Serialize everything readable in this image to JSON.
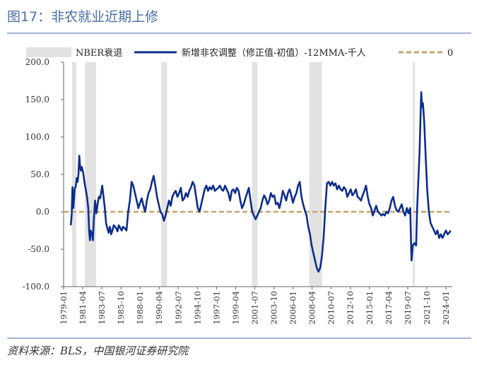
{
  "figure": {
    "title": "图17：非农就业近期上修",
    "source": "资料来源：BLS，中国银河证券研究院",
    "colors": {
      "title": "#4a6ea8",
      "series": "#0d2d8c",
      "zero": "#c8a26b",
      "recession": "#e2e2e2",
      "rule": "#4a6ea8"
    }
  },
  "chart_data": {
    "type": "line",
    "legend": [
      {
        "label": "NBER衰退",
        "kind": "band"
      },
      {
        "label": "新增非农调整（修正值-初值）-12MMA-千人",
        "kind": "line"
      },
      {
        "label": "0",
        "kind": "dashed"
      }
    ],
    "legend_position": "top",
    "grid": false,
    "ylim": [
      -100,
      200
    ],
    "y_ticks": [
      "200.0",
      "150.0",
      "100.0",
      "50.0",
      "0.0",
      "-50.0",
      "-100.0"
    ],
    "y_tick_values": [
      200,
      150,
      100,
      50,
      0,
      -50,
      -100
    ],
    "x_ticks": [
      "1979-01",
      "1981-04",
      "1983-07",
      "1985-10",
      "1988-01",
      "1990-04",
      "1992-07",
      "1994-10",
      "1997-01",
      "1999-04",
      "2001-07",
      "2003-10",
      "2006-01",
      "2008-04",
      "2010-07",
      "2012-10",
      "2015-01",
      "2017-04",
      "2019-07",
      "2021-10",
      "2024-01"
    ],
    "xlim": [
      1979.0,
      2024.75
    ],
    "recessions": [
      [
        1980.0,
        1980.5
      ],
      [
        1981.5,
        1982.83
      ],
      [
        1990.5,
        1991.17
      ],
      [
        2001.17,
        2001.83
      ],
      [
        2007.92,
        2009.42
      ],
      [
        2020.08,
        2020.33
      ]
    ],
    "series": [
      {
        "name": "新增非农调整（修正值-初值）-12MMA-千人",
        "points": [
          [
            1979.85,
            -18
          ],
          [
            1979.95,
            -5
          ],
          [
            1980.05,
            33
          ],
          [
            1980.15,
            5
          ],
          [
            1980.3,
            30
          ],
          [
            1980.45,
            35
          ],
          [
            1980.55,
            45
          ],
          [
            1980.65,
            40
          ],
          [
            1980.75,
            50
          ],
          [
            1980.85,
            75
          ],
          [
            1980.95,
            60
          ],
          [
            1981.05,
            55
          ],
          [
            1981.15,
            60
          ],
          [
            1981.3,
            52
          ],
          [
            1981.45,
            40
          ],
          [
            1981.6,
            30
          ],
          [
            1981.75,
            20
          ],
          [
            1981.9,
            5
          ],
          [
            1982.0,
            -25
          ],
          [
            1982.1,
            -38
          ],
          [
            1982.2,
            -25
          ],
          [
            1982.35,
            -30
          ],
          [
            1982.45,
            -38
          ],
          [
            1982.55,
            -12
          ],
          [
            1982.7,
            15
          ],
          [
            1982.85,
            -2
          ],
          [
            1983.0,
            10
          ],
          [
            1983.15,
            20
          ],
          [
            1983.3,
            18
          ],
          [
            1983.45,
            28
          ],
          [
            1983.55,
            35
          ],
          [
            1983.7,
            20
          ],
          [
            1983.85,
            5
          ],
          [
            1984.0,
            -15
          ],
          [
            1984.15,
            -22
          ],
          [
            1984.3,
            -28
          ],
          [
            1984.45,
            -20
          ],
          [
            1984.6,
            -30
          ],
          [
            1984.75,
            -25
          ],
          [
            1984.9,
            -18
          ],
          [
            1985.05,
            -20
          ],
          [
            1985.2,
            -22
          ],
          [
            1985.35,
            -26
          ],
          [
            1985.5,
            -18
          ],
          [
            1985.7,
            -22
          ],
          [
            1985.85,
            -25
          ],
          [
            1986.0,
            -20
          ],
          [
            1986.2,
            -22
          ],
          [
            1986.4,
            -25
          ],
          [
            1986.6,
            0
          ],
          [
            1986.8,
            15
          ],
          [
            1987.0,
            40
          ],
          [
            1987.2,
            35
          ],
          [
            1987.4,
            25
          ],
          [
            1987.6,
            15
          ],
          [
            1987.8,
            5
          ],
          [
            1988.0,
            12
          ],
          [
            1988.2,
            18
          ],
          [
            1988.4,
            8
          ],
          [
            1988.6,
            0
          ],
          [
            1988.8,
            15
          ],
          [
            1989.0,
            25
          ],
          [
            1989.2,
            30
          ],
          [
            1989.4,
            40
          ],
          [
            1989.6,
            48
          ],
          [
            1989.8,
            35
          ],
          [
            1990.0,
            20
          ],
          [
            1990.2,
            10
          ],
          [
            1990.4,
            0
          ],
          [
            1990.6,
            -3
          ],
          [
            1990.8,
            -12
          ],
          [
            1991.0,
            -5
          ],
          [
            1991.2,
            5
          ],
          [
            1991.4,
            15
          ],
          [
            1991.6,
            8
          ],
          [
            1991.8,
            20
          ],
          [
            1992.0,
            25
          ],
          [
            1992.2,
            28
          ],
          [
            1992.4,
            20
          ],
          [
            1992.6,
            25
          ],
          [
            1992.8,
            32
          ],
          [
            1993.0,
            15
          ],
          [
            1993.2,
            18
          ],
          [
            1993.4,
            25
          ],
          [
            1993.6,
            20
          ],
          [
            1993.8,
            28
          ],
          [
            1994.0,
            33
          ],
          [
            1994.2,
            40
          ],
          [
            1994.4,
            35
          ],
          [
            1994.6,
            20
          ],
          [
            1994.8,
            5
          ],
          [
            1995.0,
            0
          ],
          [
            1995.2,
            10
          ],
          [
            1995.4,
            20
          ],
          [
            1995.6,
            30
          ],
          [
            1995.8,
            35
          ],
          [
            1996.0,
            28
          ],
          [
            1996.2,
            33
          ],
          [
            1996.4,
            30
          ],
          [
            1996.6,
            35
          ],
          [
            1996.8,
            28
          ],
          [
            1997.0,
            30
          ],
          [
            1997.2,
            32
          ],
          [
            1997.4,
            35
          ],
          [
            1997.6,
            30
          ],
          [
            1997.8,
            28
          ],
          [
            1998.0,
            35
          ],
          [
            1998.2,
            30
          ],
          [
            1998.4,
            25
          ],
          [
            1998.6,
            15
          ],
          [
            1998.8,
            28
          ],
          [
            1999.0,
            30
          ],
          [
            1999.2,
            25
          ],
          [
            1999.4,
            32
          ],
          [
            1999.6,
            28
          ],
          [
            1999.8,
            15
          ],
          [
            2000.0,
            5
          ],
          [
            2000.2,
            10
          ],
          [
            2000.4,
            18
          ],
          [
            2000.6,
            25
          ],
          [
            2000.8,
            32
          ],
          [
            2001.0,
            15
          ],
          [
            2001.2,
            0
          ],
          [
            2001.4,
            -5
          ],
          [
            2001.6,
            -10
          ],
          [
            2001.8,
            -5
          ],
          [
            2002.0,
            0
          ],
          [
            2002.2,
            5
          ],
          [
            2002.4,
            15
          ],
          [
            2002.6,
            22
          ],
          [
            2002.8,
            18
          ],
          [
            2003.0,
            10
          ],
          [
            2003.2,
            15
          ],
          [
            2003.4,
            25
          ],
          [
            2003.6,
            20
          ],
          [
            2003.8,
            22
          ],
          [
            2004.0,
            10
          ],
          [
            2004.2,
            12
          ],
          [
            2004.4,
            5
          ],
          [
            2004.6,
            15
          ],
          [
            2004.8,
            28
          ],
          [
            2005.0,
            22
          ],
          [
            2005.2,
            15
          ],
          [
            2005.4,
            25
          ],
          [
            2005.6,
            30
          ],
          [
            2005.8,
            22
          ],
          [
            2006.0,
            12
          ],
          [
            2006.2,
            20
          ],
          [
            2006.4,
            25
          ],
          [
            2006.6,
            35
          ],
          [
            2006.8,
            40
          ],
          [
            2007.0,
            20
          ],
          [
            2007.2,
            10
          ],
          [
            2007.4,
            2
          ],
          [
            2007.6,
            -5
          ],
          [
            2007.8,
            -20
          ],
          [
            2008.0,
            -30
          ],
          [
            2008.2,
            -45
          ],
          [
            2008.4,
            -55
          ],
          [
            2008.6,
            -65
          ],
          [
            2008.8,
            -75
          ],
          [
            2009.0,
            -80
          ],
          [
            2009.2,
            -75
          ],
          [
            2009.4,
            -60
          ],
          [
            2009.6,
            -35
          ],
          [
            2009.8,
            5
          ],
          [
            2010.0,
            38
          ],
          [
            2010.2,
            40
          ],
          [
            2010.4,
            35
          ],
          [
            2010.6,
            40
          ],
          [
            2010.8,
            35
          ],
          [
            2011.0,
            38
          ],
          [
            2011.2,
            30
          ],
          [
            2011.4,
            35
          ],
          [
            2011.6,
            30
          ],
          [
            2011.8,
            28
          ],
          [
            2012.0,
            33
          ],
          [
            2012.2,
            30
          ],
          [
            2012.4,
            20
          ],
          [
            2012.6,
            25
          ],
          [
            2012.8,
            30
          ],
          [
            2013.0,
            22
          ],
          [
            2013.2,
            25
          ],
          [
            2013.4,
            30
          ],
          [
            2013.6,
            20
          ],
          [
            2013.8,
            18
          ],
          [
            2014.0,
            15
          ],
          [
            2014.2,
            22
          ],
          [
            2014.4,
            28
          ],
          [
            2014.6,
            35
          ],
          [
            2014.8,
            20
          ],
          [
            2015.0,
            10
          ],
          [
            2015.2,
            5
          ],
          [
            2015.4,
            -5
          ],
          [
            2015.6,
            2
          ],
          [
            2015.8,
            8
          ],
          [
            2016.0,
            0
          ],
          [
            2016.2,
            -2
          ],
          [
            2016.4,
            -5
          ],
          [
            2016.6,
            -3
          ],
          [
            2016.8,
            -5
          ],
          [
            2017.0,
            0
          ],
          [
            2017.2,
            -2
          ],
          [
            2017.4,
            5
          ],
          [
            2017.6,
            15
          ],
          [
            2017.8,
            20
          ],
          [
            2018.0,
            8
          ],
          [
            2018.2,
            2
          ],
          [
            2018.4,
            0
          ],
          [
            2018.6,
            5
          ],
          [
            2018.8,
            10
          ],
          [
            2019.0,
            0
          ],
          [
            2019.2,
            -5
          ],
          [
            2019.4,
            5
          ],
          [
            2019.6,
            -2
          ],
          [
            2019.8,
            5
          ],
          [
            2019.95,
            -65
          ],
          [
            2020.1,
            -45
          ],
          [
            2020.3,
            -42
          ],
          [
            2020.5,
            -45
          ],
          [
            2020.6,
            0
          ],
          [
            2020.75,
            40
          ],
          [
            2020.9,
            80
          ],
          [
            2021.0,
            120
          ],
          [
            2021.1,
            160
          ],
          [
            2021.2,
            140
          ],
          [
            2021.3,
            145
          ],
          [
            2021.45,
            120
          ],
          [
            2021.6,
            80
          ],
          [
            2021.8,
            30
          ],
          [
            2022.0,
            0
          ],
          [
            2022.2,
            -15
          ],
          [
            2022.4,
            -20
          ],
          [
            2022.6,
            -25
          ],
          [
            2022.8,
            -30
          ],
          [
            2023.0,
            -25
          ],
          [
            2023.2,
            -35
          ],
          [
            2023.4,
            -30
          ],
          [
            2023.6,
            -35
          ],
          [
            2023.8,
            -30
          ],
          [
            2024.0,
            -25
          ],
          [
            2024.2,
            -30
          ],
          [
            2024.4,
            -28
          ],
          [
            2024.55,
            -25
          ]
        ]
      },
      {
        "name": "0",
        "constant": 0
      }
    ]
  }
}
